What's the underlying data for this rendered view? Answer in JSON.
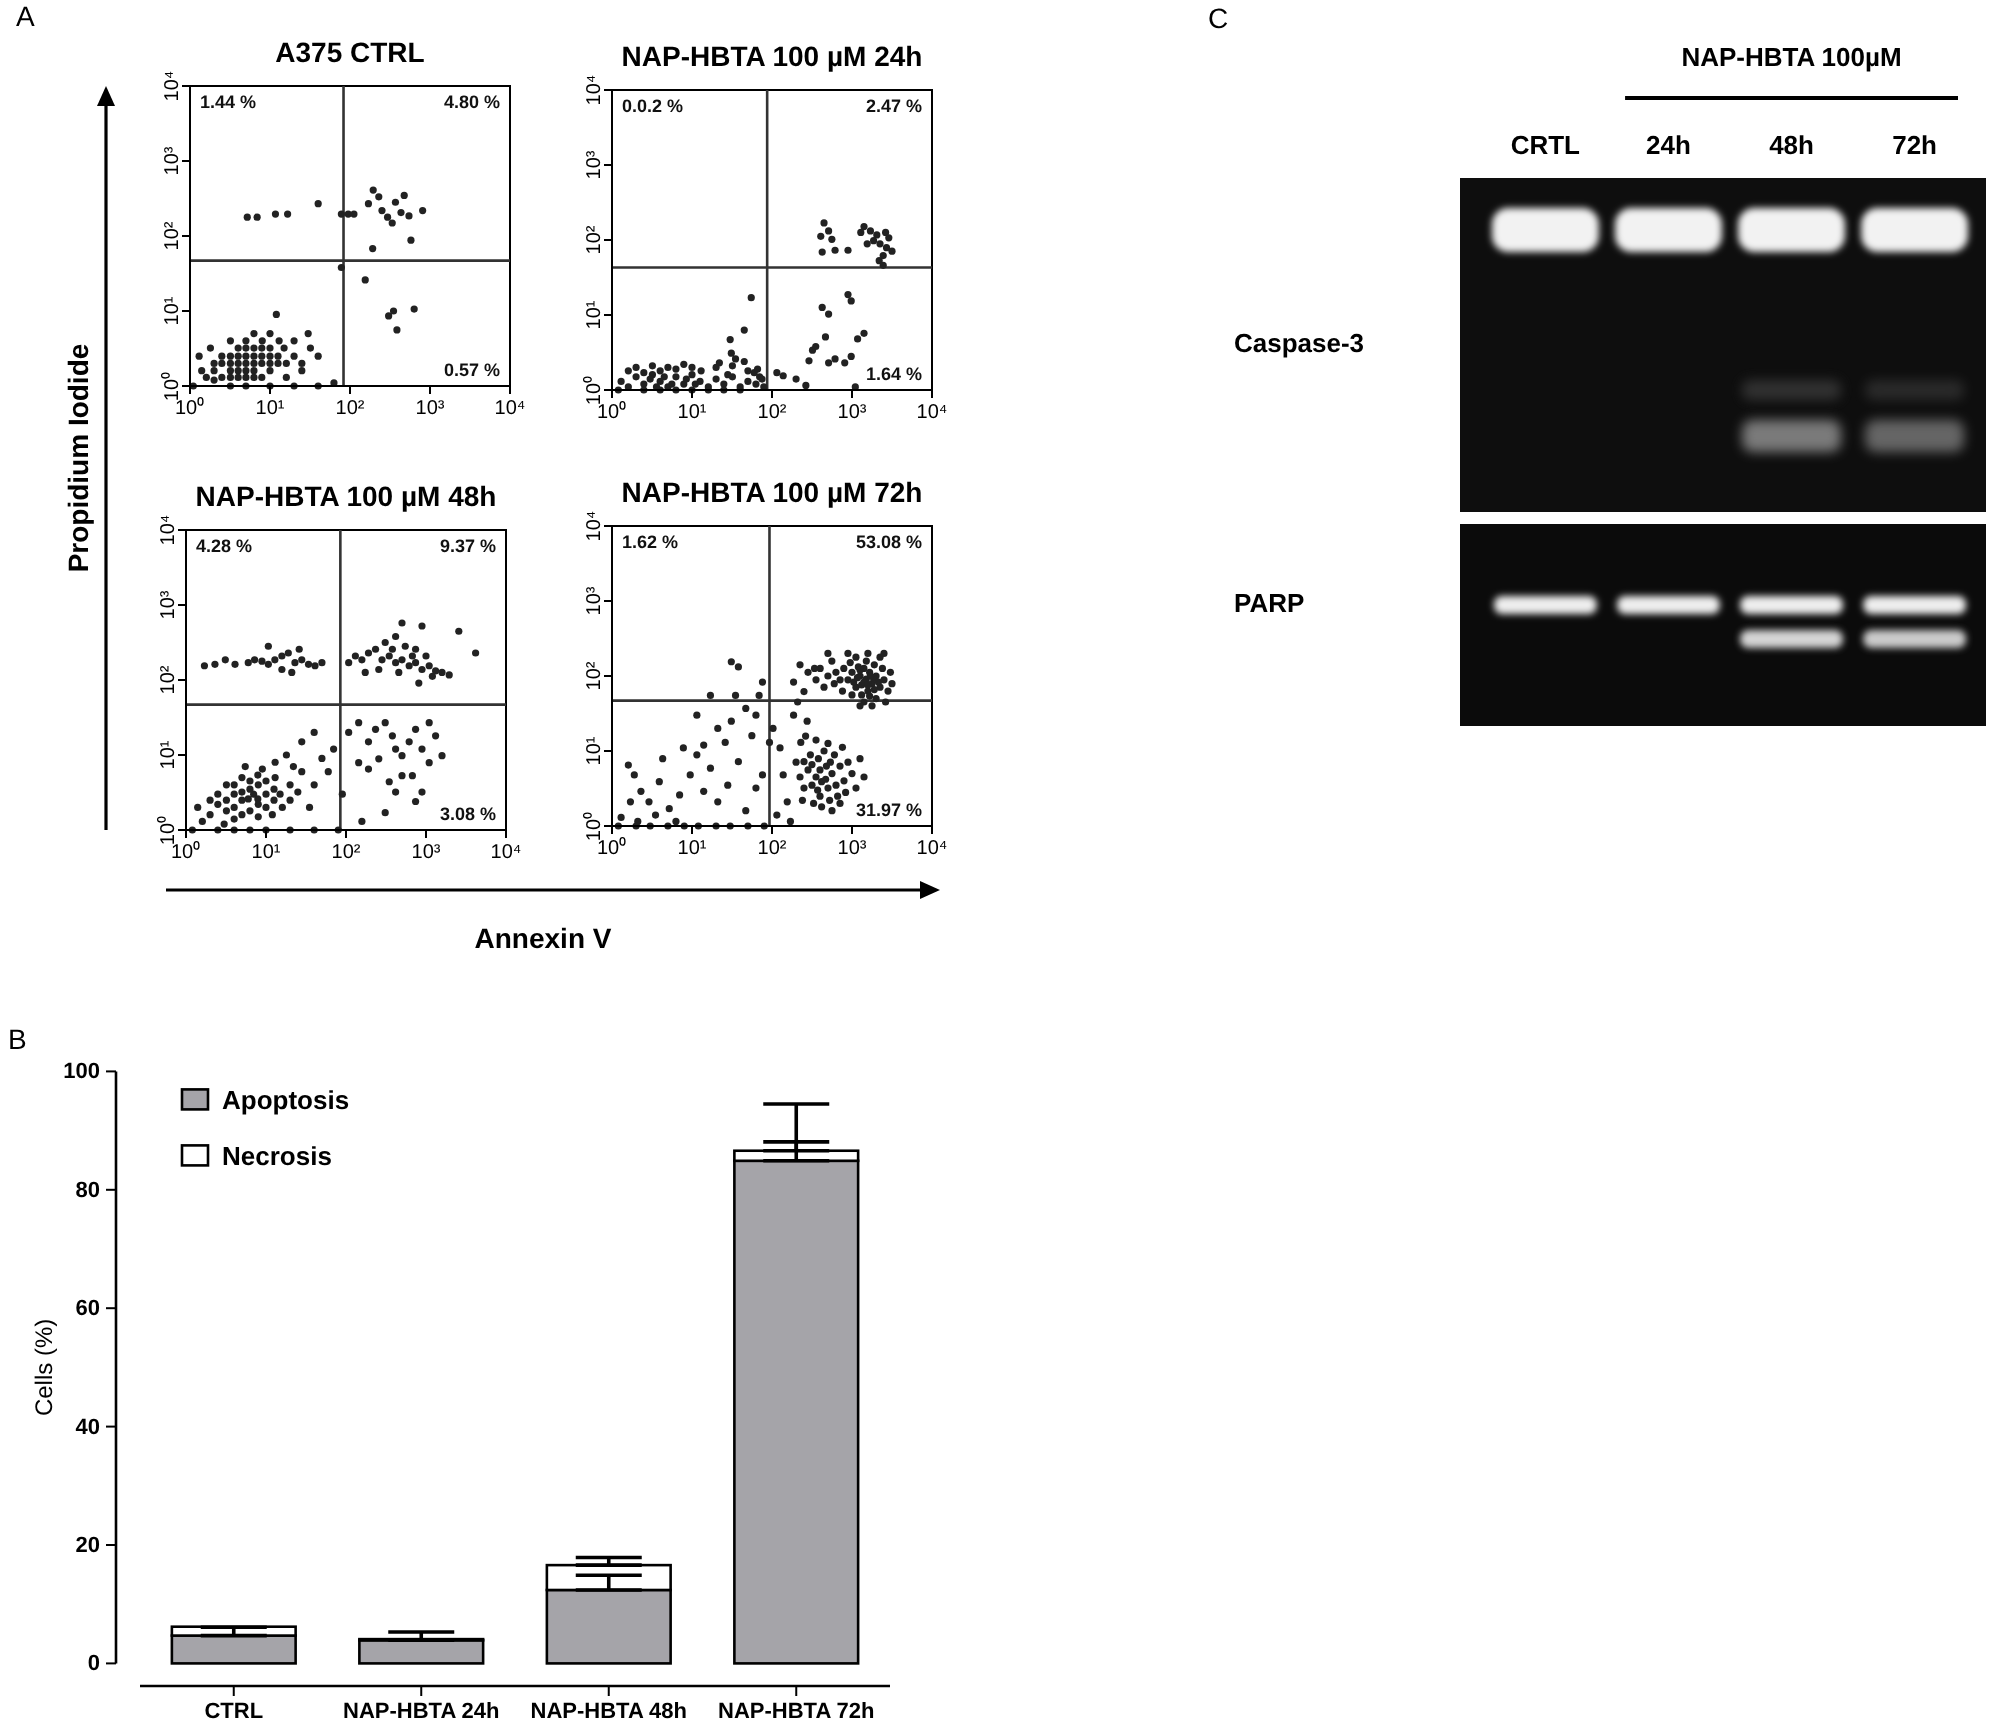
{
  "chart_data": [
    {
      "type": "scatter",
      "title": "A375 CTRL",
      "ylabel": "Propidium Iodide",
      "annotations": [
        "A",
        "1.44 %",
        "4.80 %",
        "0.57 %"
      ],
      "log": "xy",
      "xlim": [
        1,
        10000
      ],
      "ylim": [
        1,
        10000
      ],
      "xticks": [
        {
          "value": 1,
          "label": "10⁰"
        },
        {
          "value": 10,
          "label": "10¹"
        },
        {
          "value": 100,
          "label": "10²"
        },
        {
          "value": 1000,
          "label": "10³"
        },
        {
          "value": 10000,
          "label": "10⁴"
        }
      ],
      "yticks": [
        {
          "value": 1,
          "label": "10⁰"
        },
        {
          "value": 10,
          "label": "10¹"
        },
        {
          "value": 100,
          "label": "10²"
        },
        {
          "value": 1000,
          "label": "10³"
        },
        {
          "value": 10000,
          "label": "10⁴"
        }
      ],
      "ref_lines": [
        {
          "axis": "x",
          "value": 83
        },
        {
          "axis": "y",
          "value": 47
        }
      ],
      "color": "#222222",
      "x": [
        5,
        6.3,
        4,
        7.9,
        5,
        3.2,
        10,
        6.3,
        4,
        5,
        7.9,
        2.5,
        3.2,
        6.3,
        5,
        4,
        10,
        7.9,
        12.6,
        3.2,
        2.5,
        2,
        6.3,
        5,
        4,
        7.9,
        10,
        12.6,
        16,
        2.5,
        2,
        1.6,
        3.2,
        6.3,
        4,
        10,
        15,
        20,
        8,
        5,
        3.2,
        13,
        25,
        6.3,
        1.4,
        2,
        3.2,
        5,
        10,
        20,
        40,
        63,
        1.3,
        32,
        20,
        10,
        16,
        25,
        40,
        1.8,
        12,
        30,
        1.1,
        5.2,
        6.9,
        11.7,
        16.6,
        40,
        78,
        95,
        112,
        170,
        195,
        229,
        251,
        295,
        337,
        370,
        434,
        476,
        546,
        809,
        192,
        578,
        155,
        304,
        350,
        386,
        634,
        78
      ],
      "values": [
        2,
        2.5,
        1.6,
        2,
        1.3,
        1.6,
        2.5,
        1.6,
        2.5,
        3.2,
        3.2,
        2,
        2.5,
        2,
        1.6,
        2,
        1.6,
        1.3,
        2,
        1.3,
        1.3,
        1.6,
        3.2,
        2.5,
        3.2,
        2.5,
        3.2,
        2.5,
        2,
        2.5,
        2,
        1.3,
        2,
        1.3,
        1.3,
        2,
        3.2,
        2.5,
        4,
        4,
        4,
        4,
        2,
        5,
        1.6,
        1.2,
        1,
        1,
        1,
        1,
        1,
        1.1,
        2.5,
        3.2,
        4,
        5,
        1.3,
        1.6,
        2.5,
        3.2,
        9,
        5,
        1,
        178,
        178,
        196,
        196,
        270,
        196,
        196,
        196,
        270,
        410,
        333,
        218,
        178,
        149,
        282,
        205,
        348,
        185,
        218,
        68,
        88,
        26,
        8.6,
        10,
        5.6,
        10.6,
        38
      ]
    },
    {
      "type": "scatter",
      "title": "NAP-HBTA 100 µM 24h",
      "annotations": [
        "0.0.2 %",
        "2.47 %",
        "1.64 %"
      ],
      "log": "xy",
      "xlim": [
        1,
        10000
      ],
      "ylim": [
        1,
        10000
      ],
      "xticks": [
        {
          "value": 1,
          "label": "10⁰"
        },
        {
          "value": 10,
          "label": "10¹"
        },
        {
          "value": 100,
          "label": "10²"
        },
        {
          "value": 1000,
          "label": "10³"
        },
        {
          "value": 10000,
          "label": "10⁴"
        }
      ],
      "yticks": [
        {
          "value": 1,
          "label": "10⁰"
        },
        {
          "value": 10,
          "label": "10¹"
        },
        {
          "value": 100,
          "label": "10²"
        },
        {
          "value": 1000,
          "label": "10³"
        },
        {
          "value": 10000,
          "label": "10⁴"
        }
      ],
      "ref_lines": [
        {
          "axis": "x",
          "value": 87
        },
        {
          "axis": "y",
          "value": 43
        }
      ],
      "color": "#222222",
      "x": [
        1.3,
        1.6,
        2,
        2.5,
        3.2,
        4,
        5,
        6.3,
        7.9,
        10,
        12.6,
        16,
        20,
        25,
        32,
        40,
        50,
        63,
        79,
        2,
        3.2,
        5,
        7.9,
        10,
        4,
        6.3,
        2.5,
        1.6,
        13,
        20,
        32,
        50,
        1.2,
        2.5,
        4,
        6.3,
        10,
        16,
        25,
        40,
        3,
        4.5,
        8.5,
        11,
        5.6,
        3.6,
        28,
        45,
        60,
        70,
        35,
        22,
        31,
        45,
        55,
        30,
        66,
        75,
        115,
        138,
        200,
        265,
        290,
        321,
        352,
        466,
        424,
        510,
        510,
        614,
        811,
        977,
        891,
        977,
        1175,
        1413,
        1100,
        447,
        510,
        407,
        560,
        614,
        891,
        424,
        1413,
        1700,
        2042,
        2630,
        2884,
        1862,
        2239,
        2700,
        3162,
        2455,
        2188,
        2455,
        1549,
        1288
      ],
      "values": [
        1.3,
        1.1,
        1.5,
        1.2,
        1.6,
        1.3,
        1.1,
        1.5,
        1.2,
        1.6,
        1.3,
        1.1,
        1.4,
        1.2,
        1.5,
        1.1,
        1.3,
        1.2,
        1.1,
        2,
        2.1,
        2,
        2.2,
        2,
        1.8,
        1.9,
        1.7,
        1.8,
        1.8,
        2,
        2.1,
        1.8,
        1,
        1,
        1,
        1,
        1,
        1,
        1,
        1,
        1.4,
        1.5,
        1.4,
        1.2,
        1.2,
        1.1,
        1.6,
        2.4,
        1.7,
        1.5,
        2.6,
        2.3,
        3.1,
        6.3,
        17,
        4.7,
        1.9,
        1.4,
        1.7,
        1.55,
        1.4,
        1.15,
        2.45,
        3.4,
        3.8,
        5.1,
        12.6,
        10.3,
        2.3,
        2.6,
        2.3,
        2.8,
        18.7,
        15.4,
        4.8,
        5.7,
        1.1,
        169,
        132,
        112,
        102,
        73,
        73,
        69,
        151,
        132,
        117,
        126,
        107,
        98,
        89,
        79,
        71,
        62,
        53,
        46,
        89,
        126
      ]
    },
    {
      "type": "scatter",
      "title": "NAP-HBTA 100 µM 48h",
      "xlabel": "Annexin V",
      "annotations": [
        "4.28 %",
        "9.37 %",
        "3.08 %"
      ],
      "log": "xy",
      "xlim": [
        1,
        10000
      ],
      "ylim": [
        1,
        10000
      ],
      "xticks": [
        {
          "value": 1,
          "label": "10⁰"
        },
        {
          "value": 10,
          "label": "10¹"
        },
        {
          "value": 100,
          "label": "10²"
        },
        {
          "value": 1000,
          "label": "10³"
        },
        {
          "value": 10000,
          "label": "10⁴"
        }
      ],
      "yticks": [
        {
          "value": 1,
          "label": "10⁰"
        },
        {
          "value": 10,
          "label": "10¹"
        },
        {
          "value": 100,
          "label": "10²"
        },
        {
          "value": 1000,
          "label": "10³"
        },
        {
          "value": 10000,
          "label": "10⁴"
        }
      ],
      "ref_lines": [
        {
          "axis": "x",
          "value": 85
        },
        {
          "axis": "y",
          "value": 47
        }
      ],
      "color": "#222222",
      "x": [
        6,
        5,
        7,
        4,
        8,
        6.3,
        5,
        4,
        3.2,
        7.9,
        10,
        10,
        12.6,
        6.3,
        5,
        3.2,
        2.5,
        4,
        6.3,
        8,
        10,
        12.6,
        15,
        16,
        2,
        2.5,
        3.2,
        5,
        7.9,
        13,
        20,
        20,
        25,
        4,
        8,
        12,
        1.6,
        2,
        1.4,
        3,
        28,
        18,
        28,
        40,
        13,
        60,
        90,
        40,
        50,
        35,
        70,
        22,
        1.2,
        2.5,
        4,
        6.3,
        10,
        20,
        40,
        80,
        9,
        5.5,
        1.7,
        2.3,
        3.1,
        4.1,
        6,
        7.2,
        8.9,
        10.7,
        12.9,
        15.8,
        19,
        23,
        28,
        34,
        41,
        15.8,
        21,
        10.7,
        26,
        50,
        108,
        131,
        158,
        191,
        234,
        282,
        347,
        417,
        501,
        616,
        741,
        891,
        1096,
        1318,
        1585,
        1950,
        309,
        417,
        550,
        741,
        1000,
        501,
        891,
        2570,
        4169,
        257,
        457,
        813,
        174,
        1202,
        676,
        380,
        108,
        144,
        191,
        234,
        309,
        380,
        417,
        501,
        616,
        741,
        891,
        1096,
        1318,
        1585,
        347,
        501,
        417,
        741,
        191,
        257,
        144,
        1096,
        676,
        891,
        309,
        158
      ],
      "values": [
        2.6,
        2.5,
        3,
        2,
        2.2,
        3.5,
        3.2,
        3,
        2.5,
        2.6,
        3,
        2,
        2.5,
        1.8,
        1.6,
        1.8,
        2.2,
        4,
        4.5,
        4,
        4.5,
        3.5,
        3,
        2,
        1.6,
        3,
        4,
        5,
        5.4,
        5,
        2.5,
        4,
        3.2,
        1.4,
        1.5,
        1.6,
        1.3,
        2.5,
        2,
        1.2,
        6,
        10,
        15,
        20,
        8,
        6,
        3,
        4,
        9,
        2,
        12,
        7,
        1,
        1,
        1,
        1,
        1,
        1,
        1,
        1,
        6.5,
        7,
        155,
        162,
        186,
        162,
        170,
        186,
        178,
        162,
        186,
        209,
        229,
        170,
        186,
        162,
        155,
        138,
        126,
        282,
        257,
        170,
        170,
        209,
        186,
        229,
        257,
        186,
        209,
        170,
        186,
        155,
        170,
        138,
        155,
        132,
        126,
        117,
        316,
        380,
        282,
        257,
        209,
        575,
        525,
        447,
        229,
        138,
        126,
        91,
        126,
        112,
        209,
        257,
        20,
        27,
        15,
        22,
        27,
        18,
        12,
        9.8,
        15,
        22,
        12,
        7.9,
        18,
        9.8,
        4.4,
        5.3,
        3.2,
        2.4,
        6.5,
        8.9,
        7.9,
        27,
        5.3,
        3.2,
        1.7,
        1.3
      ]
    },
    {
      "type": "scatter",
      "title": "NAP-HBTA 100 µM 72h",
      "annotations": [
        "1.62 %",
        "53.08 %",
        "31.97 %"
      ],
      "log": "xy",
      "xlim": [
        1,
        10000
      ],
      "ylim": [
        1,
        10000
      ],
      "xticks": [
        {
          "value": 1,
          "label": "10⁰"
        },
        {
          "value": 10,
          "label": "10¹"
        },
        {
          "value": 100,
          "label": "10²"
        },
        {
          "value": 1000,
          "label": "10³"
        },
        {
          "value": 10000,
          "label": "10⁴"
        }
      ],
      "yticks": [
        {
          "value": 1,
          "label": "10⁰"
        },
        {
          "value": 10,
          "label": "10¹"
        },
        {
          "value": 100,
          "label": "10²"
        },
        {
          "value": 1000,
          "label": "10³"
        },
        {
          "value": 10000,
          "label": "10⁴"
        }
      ],
      "ref_lines": [
        {
          "axis": "x",
          "value": 93
        },
        {
          "axis": "y",
          "value": 47
        }
      ],
      "color": "#222222",
      "x": [
        1510,
        1260,
        1780,
        1000,
        2000,
        1410,
        1580,
        1120,
        2240,
        890,
        1320,
        1900,
        1660,
        1200,
        790,
        2510,
        2820,
        2400,
        710,
        630,
        1000,
        1410,
        2000,
        560,
        500,
        3160,
        1120,
        1580,
        890,
        2240,
        400,
        447,
        2630,
        3020,
        760,
        1780,
        1260,
        355,
        1510,
        1050,
        1860,
        1320,
        2140,
        950,
        1660,
        600,
        2510,
        500,
        1410,
        1700,
        1170,
        1580,
        1900,
        1260,
        186,
        251,
        340,
        282,
        224,
        417,
        355,
        501,
        316,
        562,
        398,
        479,
        282,
        631,
        380,
        525,
        251,
        708,
        447,
        331,
        603,
        794,
        224,
        891,
        302,
        417,
        661,
        200,
        1000,
        501,
        355,
        759,
        1122,
        263,
        1259,
        562,
        398,
        468,
        372,
        537,
        316,
        708,
        1413,
        240,
        832,
        1.6,
        1.9,
        2.3,
        2.9,
        3.9,
        5.2,
        7,
        9.5,
        11.5,
        14,
        17,
        21,
        26,
        31,
        38,
        47,
        56,
        69,
        76,
        31,
        38,
        17,
        11.5,
        7.8,
        4.3,
        3.5,
        2.1,
        1.3,
        6.3,
        21,
        63,
        76,
        47,
        28,
        14,
        1.7,
        35,
        63,
        1.2,
        2,
        3,
        5,
        8,
        12,
        20,
        30,
        50,
        80,
        103,
        126,
        138,
        155,
        186,
        229,
        251,
        275,
        115,
        170,
        93,
        209
      ],
      "values": [
        91,
        100,
        79,
        112,
        100,
        126,
        63,
        71,
        71,
        89,
        56,
        141,
        112,
        132,
        126,
        89,
        63,
        126,
        89,
        112,
        56,
        45,
        50,
        158,
        100,
        79,
        178,
        200,
        200,
        178,
        126,
        71,
        45,
        112,
        63,
        40,
        40,
        89,
        158,
        83,
        93,
        76,
        83,
        151,
        54,
        79,
        200,
        200,
        83,
        100,
        95,
        76,
        66,
        120,
        83,
        62,
        126,
        112,
        141,
        3.9,
        4.5,
        3.2,
        3.5,
        5,
        2.5,
        6.3,
        5.6,
        3.5,
        7.9,
        2.2,
        3.2,
        6.3,
        10,
        2,
        8.9,
        4,
        4.5,
        7.1,
        8.9,
        1.8,
        2.5,
        7.1,
        5,
        12.6,
        14,
        11.2,
        3.2,
        15.8,
        7.9,
        1.6,
        5.6,
        4.2,
        3,
        7.1,
        6.6,
        2,
        4.5,
        2.2,
        2.8,
        6.5,
        4.8,
        2.9,
        2.1,
        3.9,
        1.7,
        2.6,
        4.8,
        8.9,
        12,
        5.9,
        20,
        13,
        25,
        7.2,
        37,
        16,
        55,
        83,
        155,
        132,
        55,
        30,
        11,
        7.9,
        1.4,
        1.15,
        1.3,
        1.15,
        2.1,
        3.2,
        4.8,
        1.6,
        3.5,
        2.9,
        2.1,
        55,
        30,
        1,
        1,
        1,
        1,
        1,
        1,
        1,
        1,
        1,
        1,
        20,
        11,
        4.8,
        2.1,
        30,
        13,
        7.2,
        25,
        1.4,
        1.15,
        13,
        45
      ]
    },
    {
      "type": "bar",
      "stacked": true,
      "annotations": [
        "B"
      ],
      "ylabel": "Cells (%)",
      "categories": [
        "CTRL",
        "NAP-HBTA 24h",
        "NAP-HBTA 48h",
        "NAP-HBTA 72h"
      ],
      "series": [
        {
          "name": "Apoptosis",
          "color": "#a5a4a9",
          "values": [
            4.7,
            3.9,
            12.4,
            84.9
          ],
          "errors": [
            [
              4.7,
              6.1
            ],
            [
              3.9,
              5.3
            ],
            [
              12.4,
              14.9
            ],
            [
              84.9,
              88.1
            ]
          ]
        },
        {
          "name": "Necrosis",
          "color": "#ffffff",
          "values": [
            1.5,
            0.2,
            4.2,
            1.7
          ],
          "errors": [
            null,
            null,
            [
              16.6,
              17.9
            ],
            [
              86.6,
              94.5
            ]
          ]
        }
      ],
      "ylim": [
        0,
        100
      ],
      "yticks": [
        0,
        20,
        40,
        60,
        80,
        100
      ],
      "legend": "top left"
    },
    {
      "type": "other",
      "annotations": [
        "C",
        "NAP-HBTA 100µM",
        "Caspase-3",
        "PARP"
      ],
      "categories": [
        "CRTL",
        "24h",
        "48h",
        "72h"
      ]
    }
  ]
}
